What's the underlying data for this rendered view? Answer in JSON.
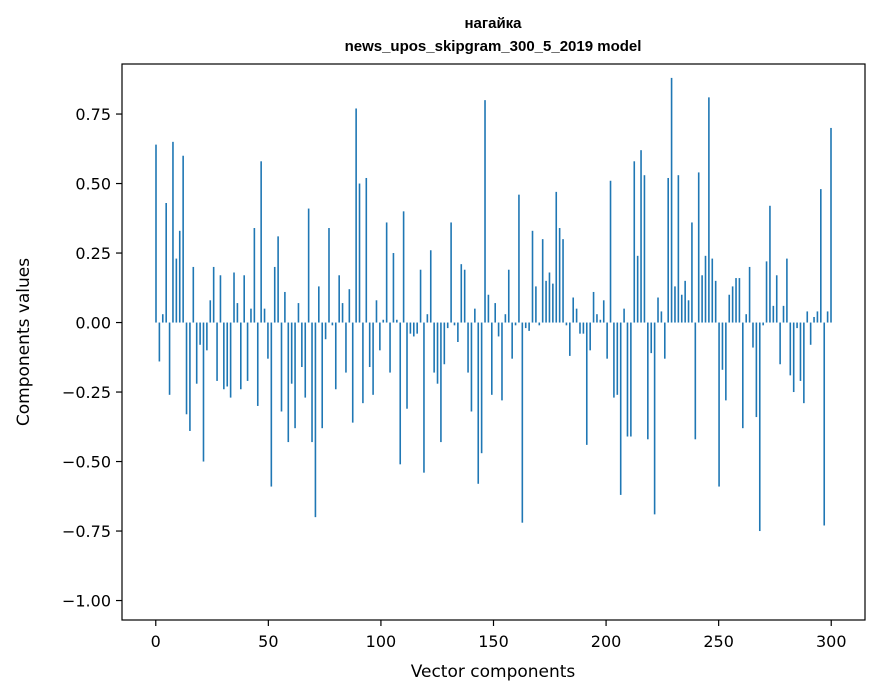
{
  "chart_data": {
    "type": "bar",
    "title_line1": "нагайка",
    "title_line2": "news_upos_skipgram_300_5_2019 model",
    "xlabel": "Vector components",
    "ylabel": "Components values",
    "xlim": [
      -15,
      315
    ],
    "ylim": [
      -1.07,
      0.93
    ],
    "x_ticks": [
      0,
      50,
      100,
      150,
      200,
      250,
      300
    ],
    "x_tick_labels": [
      "0",
      "50",
      "100",
      "150",
      "200",
      "250",
      "300"
    ],
    "y_ticks": [
      0.75,
      0.5,
      0.25,
      0.0,
      -0.25,
      -0.5,
      -0.75,
      -1.0
    ],
    "y_tick_labels": [
      "0.75",
      "0.50",
      "0.25",
      "0.00",
      "−0.25",
      "−0.50",
      "−0.75",
      "−1.00"
    ],
    "bar_color": "#1f77b4",
    "values": [
      0.64,
      -0.14,
      0.03,
      0.43,
      -0.26,
      0.65,
      0.23,
      0.33,
      0.6,
      -0.33,
      -0.39,
      0.2,
      -0.22,
      -0.08,
      -0.5,
      -0.1,
      0.08,
      0.2,
      -0.21,
      0.17,
      -0.24,
      -0.23,
      -0.27,
      0.18,
      0.07,
      -0.24,
      0.17,
      -0.21,
      0.05,
      0.34,
      -0.3,
      0.58,
      0.05,
      -0.13,
      -0.59,
      0.2,
      0.31,
      -0.32,
      0.11,
      -0.43,
      -0.22,
      -0.38,
      0.07,
      -0.16,
      -0.27,
      0.41,
      -0.43,
      -0.7,
      0.13,
      -0.38,
      -0.06,
      0.34,
      -0.01,
      -0.24,
      0.17,
      0.07,
      -0.18,
      0.12,
      -0.36,
      0.77,
      0.5,
      -0.29,
      0.52,
      -0.16,
      -0.26,
      0.08,
      -0.1,
      0.01,
      0.36,
      -0.18,
      0.25,
      0.01,
      -0.51,
      0.4,
      -0.31,
      -0.04,
      -0.05,
      -0.04,
      0.19,
      -0.54,
      0.03,
      0.26,
      -0.18,
      -0.22,
      -0.43,
      -0.15,
      -0.02,
      0.36,
      -0.01,
      -0.07,
      0.21,
      0.19,
      -0.18,
      -0.32,
      0.05,
      -0.58,
      -0.47,
      0.8,
      0.1,
      -0.26,
      0.07,
      -0.05,
      -0.28,
      0.03,
      0.19,
      -0.13,
      -0.01,
      0.46,
      -0.72,
      -0.02,
      -0.03,
      0.33,
      0.13,
      -0.01,
      0.3,
      0.15,
      0.18,
      0.14,
      0.47,
      0.34,
      0.3,
      -0.01,
      -0.12,
      0.09,
      0.05,
      -0.04,
      -0.04,
      -0.44,
      -0.1,
      0.11,
      0.03,
      0.01,
      0.08,
      -0.13,
      0.51,
      -0.27,
      -0.26,
      -0.62,
      0.05,
      -0.41,
      -0.41,
      0.58,
      0.24,
      0.62,
      0.53,
      -0.42,
      -0.11,
      -0.69,
      0.09,
      0.04,
      -0.13,
      0.52,
      0.88,
      0.13,
      0.53,
      0.1,
      0.15,
      0.08,
      0.36,
      -0.42,
      0.54,
      0.17,
      0.24,
      0.81,
      0.23,
      0.15,
      -0.59,
      -0.17,
      -0.28,
      0.1,
      0.13,
      0.16,
      0.16,
      -0.38,
      0.03,
      0.2,
      -0.09,
      -0.34,
      -0.75,
      -0.01,
      0.22,
      0.42,
      0.06,
      0.17,
      -0.15,
      0.06,
      0.23,
      -0.19,
      -0.25,
      -0.02,
      -0.21,
      -0.29,
      0.04,
      -0.08,
      0.02,
      0.04,
      0.48,
      -0.73,
      0.04,
      0.7
    ]
  }
}
